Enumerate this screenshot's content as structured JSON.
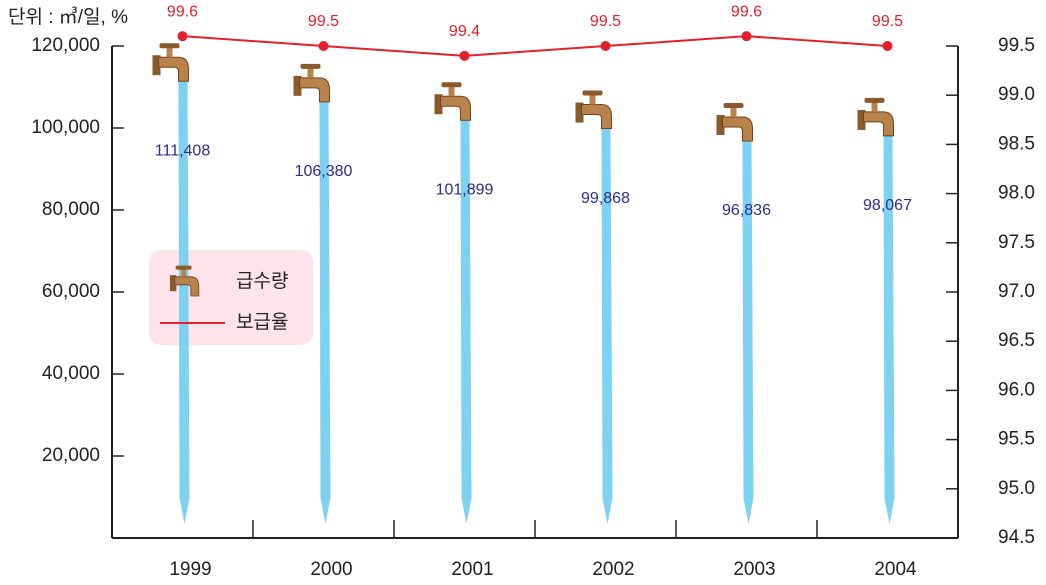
{
  "chart_data": {
    "type": "bar",
    "title": "단위 : ㎥/일, %",
    "categories": [
      "1999",
      "2000",
      "2001",
      "2002",
      "2003",
      "2004"
    ],
    "series": [
      {
        "name": "급수량",
        "color": "#6fcdf0",
        "values": [
          111408,
          106380,
          101899,
          99868,
          96836,
          98067
        ],
        "value_labels": [
          "111,408",
          "106,380",
          "101,899",
          "99,868",
          "96,836",
          "98,067"
        ]
      },
      {
        "name": "보급율",
        "type": "line",
        "axis": "y2",
        "color": "#e3202b",
        "values": [
          99.6,
          99.5,
          99.4,
          99.5,
          99.6,
          99.5
        ]
      }
    ],
    "ylim": [
      0,
      120000
    ],
    "yticks": [
      {
        "value": 20000,
        "label": "20,000"
      },
      {
        "value": 40000,
        "label": "40,000"
      },
      {
        "value": 60000,
        "label": "60,000"
      },
      {
        "value": 80000,
        "label": "80,000"
      },
      {
        "value": 100000,
        "label": "100,000"
      },
      {
        "value": 120000,
        "label": "120,000"
      }
    ],
    "y2lim": [
      94.5,
      99.5
    ],
    "y2ticks": [
      94.5,
      {
        "value": 95,
        "label": "95.0"
      },
      95.5,
      {
        "value": 96,
        "label": "96.0"
      },
      96.5,
      {
        "value": 97,
        "label": "97.0"
      },
      97.5,
      {
        "value": 98,
        "label": "98.0"
      },
      98.5,
      {
        "value": 99,
        "label": "99.0"
      },
      99.5
    ]
  }
}
